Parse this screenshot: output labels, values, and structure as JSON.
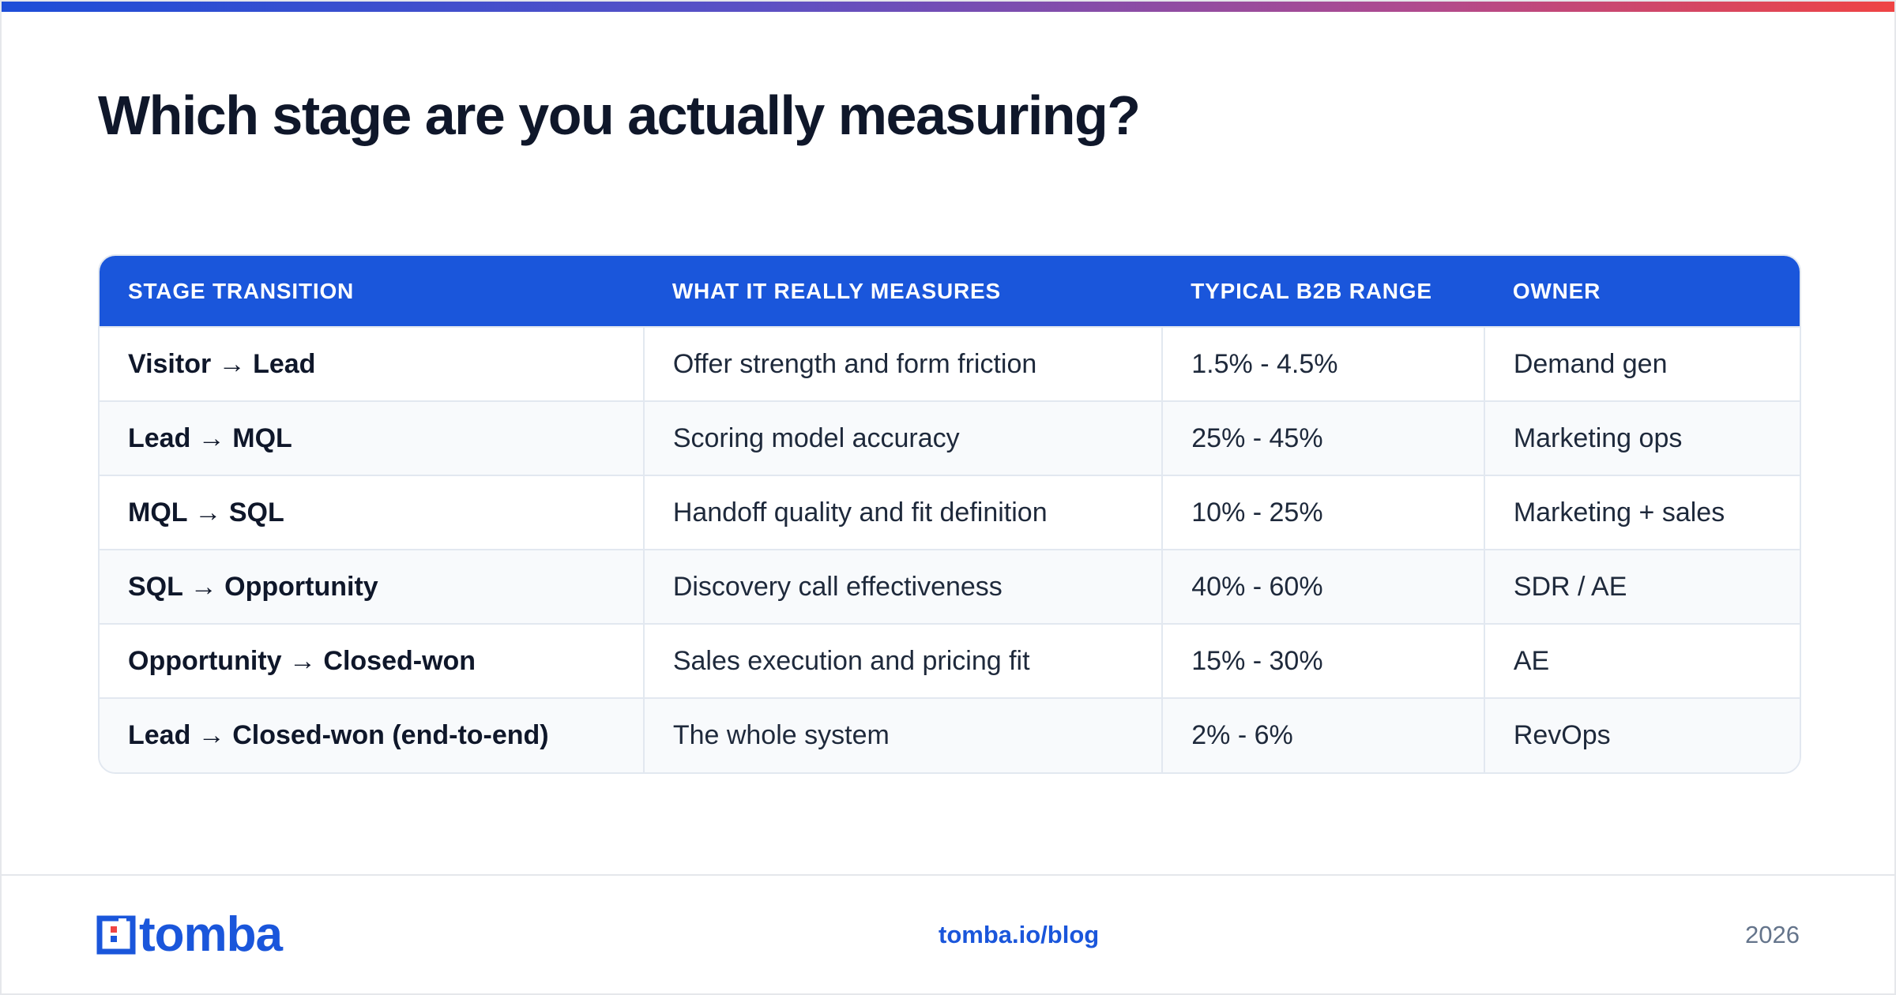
{
  "title": "Which stage are you actually measuring?",
  "table": {
    "headers": [
      "STAGE TRANSITION",
      "WHAT IT REALLY MEASURES",
      "TYPICAL B2B RANGE",
      "OWNER"
    ],
    "rows": [
      [
        "Visitor → Lead",
        "Offer strength and form friction",
        "1.5% - 4.5%",
        "Demand gen"
      ],
      [
        "Lead → MQL",
        "Scoring model accuracy",
        "25% - 45%",
        "Marketing ops"
      ],
      [
        "MQL → SQL",
        "Handoff quality and fit definition",
        "10% - 25%",
        "Marketing + sales"
      ],
      [
        "SQL → Opportunity",
        "Discovery call effectiveness",
        "40% - 60%",
        "SDR / AE"
      ],
      [
        "Opportunity → Closed-won",
        "Sales execution and pricing fit",
        "15% - 30%",
        "AE"
      ],
      [
        "Lead → Closed-won (end-to-end)",
        "The whole system",
        "2% - 6%",
        "RevOps"
      ]
    ]
  },
  "footer": {
    "brand": "tomba",
    "link": "tomba.io/blog",
    "year": "2026"
  },
  "colors": {
    "accent": "#1a56db",
    "gradient_start": "#1d4ed8",
    "gradient_end": "#ef4444",
    "logo_red": "#ef4444"
  }
}
